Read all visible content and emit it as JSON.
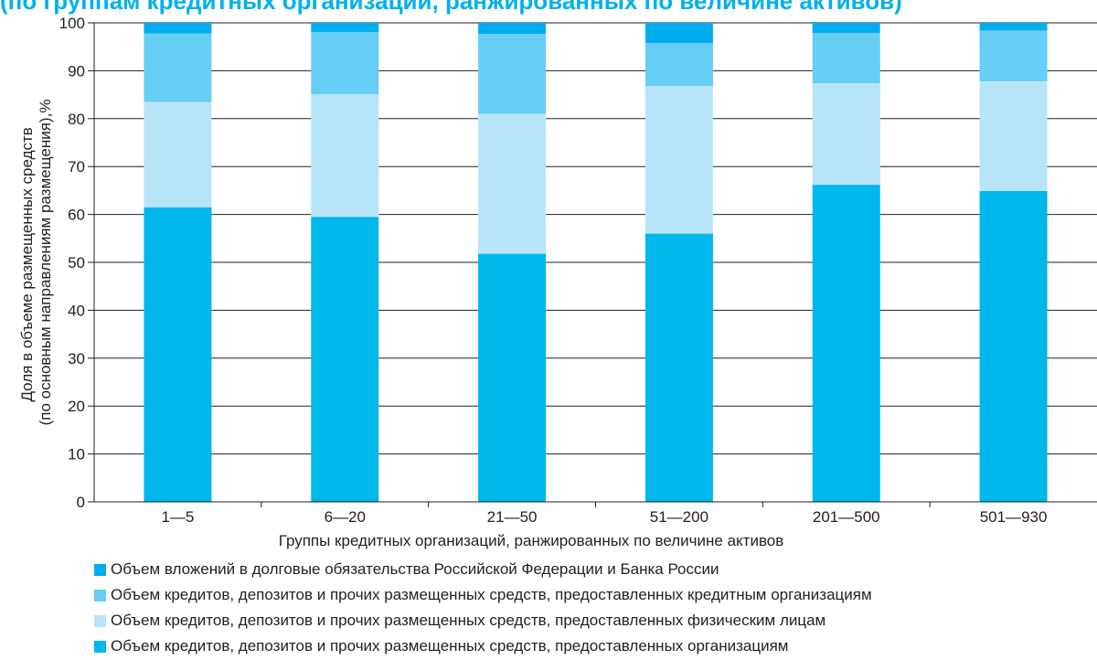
{
  "title": "(по группам кредитных организаций, ранжированных по величине активов)",
  "chart_data": {
    "type": "bar",
    "stacked": true,
    "percent": true,
    "title": "(по группам кредитных организаций, ранжированных по величине активов)",
    "xlabel": "Группы кредитных организаций, ранжированных по величине активов",
    "ylabel": "Доля в объеме размещенных средств\n(по основным направлениям размещения),%",
    "categories": [
      "1—5",
      "6—20",
      "21—50",
      "51—200",
      "201—500",
      "501—930"
    ],
    "ylim": [
      0,
      100
    ],
    "yticks": [
      0,
      10,
      20,
      30,
      40,
      50,
      60,
      70,
      80,
      90,
      100
    ],
    "grid": true,
    "legend_position": "bottom",
    "series": [
      {
        "name": "Объем кредитов, депозитов и прочих размещенных средств, предоставленных организациям",
        "color": "#00b7ec",
        "values": [
          61.5,
          59.5,
          51.8,
          56.0,
          66.2,
          64.9
        ]
      },
      {
        "name": "Объем кредитов, депозитов и прочих размещенных средств, предоставленных физическим лицам",
        "color": "#b8e4f8",
        "values": [
          22.0,
          25.6,
          29.2,
          30.8,
          21.2,
          22.9
        ]
      },
      {
        "name": "Объем кредитов, депозитов и прочих размещенных средств, предоставленных кредитным организациям",
        "color": "#66cdf4",
        "values": [
          14.3,
          13.0,
          16.7,
          9.0,
          10.5,
          10.6
        ]
      },
      {
        "name": "Объем вложений в  долговые обязательства Российской Федерации и Банка России",
        "color": "#00aeef",
        "values": [
          2.2,
          1.9,
          2.3,
          4.2,
          2.1,
          1.6
        ]
      }
    ]
  }
}
